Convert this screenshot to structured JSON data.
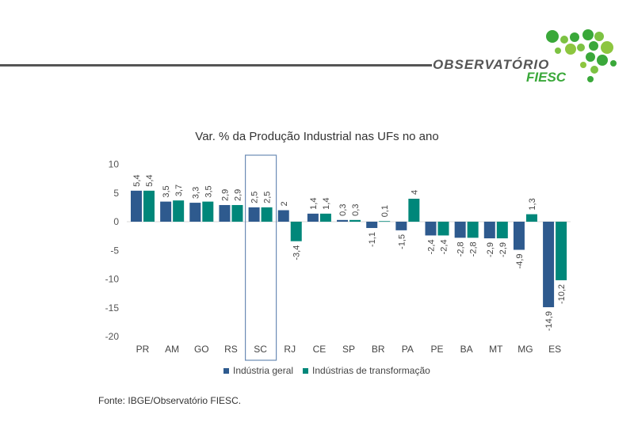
{
  "header": {
    "logo_text": "OBSERVATÓRIO",
    "logo_sub": "FIESC"
  },
  "source": "Fonte: IBGE/Observatório FIESC.",
  "colors": {
    "geral": "#2E5A8E",
    "transformacao": "#00877A",
    "highlight": "#6B8BB5"
  },
  "chart_data": {
    "type": "bar",
    "title": "Var. % da Produção Industrial nas UFs no ano",
    "categories": [
      "PR",
      "AM",
      "GO",
      "RS",
      "SC",
      "RJ",
      "CE",
      "SP",
      "BR",
      "PA",
      "PE",
      "BA",
      "MT",
      "MG",
      "ES"
    ],
    "series": [
      {
        "name": "Indústria geral",
        "values": [
          5.4,
          3.5,
          3.3,
          2.9,
          2.5,
          2,
          1.4,
          0.3,
          -1.1,
          -1.5,
          -2.4,
          -2.8,
          -2.9,
          -4.9,
          -14.9
        ]
      },
      {
        "name": "Indústrias de transformação",
        "values": [
          5.4,
          3.7,
          3.5,
          2.9,
          2.5,
          -3.4,
          1.4,
          0.3,
          0.1,
          4,
          -2.4,
          -2.8,
          -2.9,
          1.3,
          -10.2
        ]
      }
    ],
    "ylim": [
      -20,
      10
    ],
    "yticks": [
      10,
      5,
      0,
      -5,
      -10,
      -15,
      -20
    ],
    "highlight_category": "SC",
    "legend_position": "bottom",
    "grid": false
  }
}
